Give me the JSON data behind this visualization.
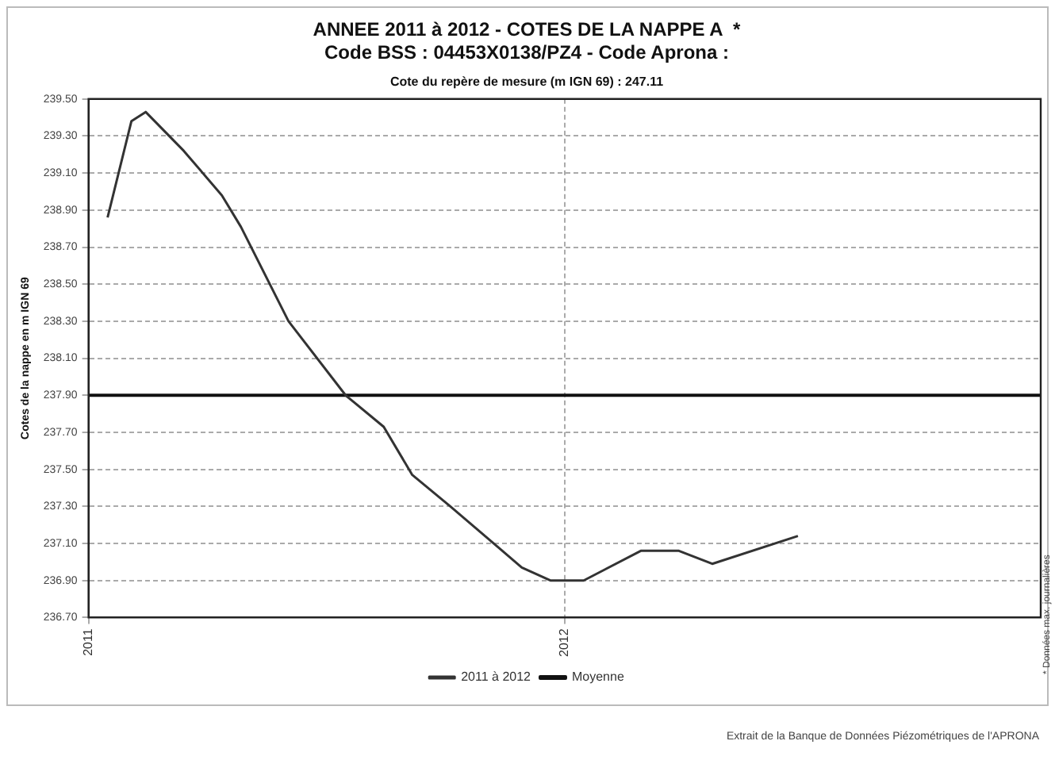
{
  "chart_data": {
    "type": "line",
    "title": [
      "ANNEE 2011 à 2012 - COTES DE LA NAPPE A  *",
      "Code BSS : 04453X0138/PZ4 - Code Aprona :"
    ],
    "subtitle": "Cote du repère de mesure (m IGN 69) : 247.11",
    "ylabel": "Cotes de la nappe en m IGN 69",
    "series": [
      {
        "name": "2011 à 2012",
        "color": "#333333",
        "x": [
          2011.04,
          2011.09,
          2011.12,
          2011.2,
          2011.28,
          2011.32,
          2011.42,
          2011.54,
          2011.62,
          2011.68,
          2011.76,
          2011.86,
          2011.91,
          2011.97,
          2012.0,
          2012.04,
          2012.16,
          2012.24,
          2012.31,
          2012.49
        ],
        "values": [
          238.86,
          239.38,
          239.43,
          239.22,
          238.98,
          238.81,
          238.3,
          237.9,
          237.73,
          237.47,
          237.3,
          237.08,
          236.97,
          236.9,
          236.9,
          236.9,
          237.06,
          237.06,
          236.99,
          237.14
        ]
      },
      {
        "name": "Moyenne",
        "color": "#111111",
        "x": [
          2011,
          2013
        ],
        "values": [
          237.9,
          237.9
        ]
      }
    ],
    "xlim": [
      2011,
      2013
    ],
    "xticks": [
      2011,
      2012
    ],
    "ylim": [
      236.7,
      239.5
    ],
    "yticks": [
      {
        "value": 236.7,
        "label": "236.70"
      },
      {
        "value": 236.9,
        "label": "236.90"
      },
      {
        "value": 237.1,
        "label": "237.10"
      },
      {
        "value": 237.3,
        "label": "237.30"
      },
      {
        "value": 237.5,
        "label": "237.50"
      },
      {
        "value": 237.7,
        "label": "237.70"
      },
      {
        "value": 237.9,
        "label": "237.90"
      },
      {
        "value": 238.1,
        "label": "238.10"
      },
      {
        "value": 238.3,
        "label": "238.30"
      },
      {
        "value": 238.5,
        "label": "238.50"
      },
      {
        "value": 238.7,
        "label": "238.70"
      },
      {
        "value": 238.9,
        "label": "238.90"
      },
      {
        "value": 239.1,
        "label": "239.10"
      },
      {
        "value": 239.3,
        "label": "239.30"
      },
      {
        "value": 239.5,
        "label": "239.50"
      }
    ],
    "grid": true,
    "legend": "bottom",
    "marker": "none",
    "line_style": "solid",
    "annotations": [
      "* Données max. journalières",
      "Extrait de la Banque de Données Piézométriques de l'APRONA"
    ]
  }
}
